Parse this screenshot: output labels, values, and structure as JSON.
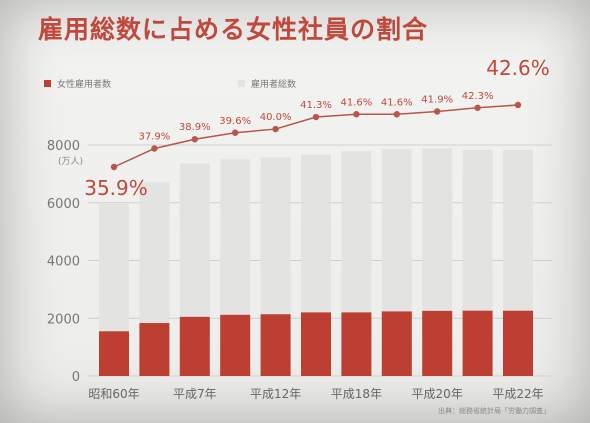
{
  "title": "雇用総数に占める女性社員の割合",
  "legend": {
    "female": "女性雇用者数",
    "total": "雇用者総数"
  },
  "colors": {
    "accent": "#c0483c",
    "bar_female": "#bd3e33",
    "bar_total": "#e3e3e1",
    "line": "#b8564b"
  },
  "source": "出典：総務省統計局「労働力調査」",
  "chart_data": {
    "type": "bar",
    "categories": [
      "昭和60年",
      "",
      "平成7年",
      "",
      "平成12年",
      "",
      "平成18年",
      "",
      "平成20年",
      "",
      "平成22年"
    ],
    "ylabel": "(万人)",
    "ylim": [
      0,
      8000
    ],
    "yticks": [
      0,
      2000,
      4000,
      6000,
      8000
    ],
    "series": [
      {
        "name": "女性雇用者数",
        "values": [
          1548,
          1834,
          2048,
          2118,
          2140,
          2203,
          2203,
          2237,
          2256,
          2262,
          2260
        ]
      },
      {
        "name": "雇用者総数",
        "values": [
          5962,
          6706,
          7363,
          7507,
          7567,
          7659,
          7785,
          7856,
          7880,
          7839,
          7839
        ]
      }
    ],
    "line": {
      "values": [
        35.9,
        37.9,
        38.9,
        39.6,
        40.0,
        41.3,
        41.6,
        41.6,
        41.9,
        42.3,
        42.6
      ],
      "labels": [
        "35.9%",
        "37.9%",
        "38.9%",
        "39.6%",
        "40.0%",
        "41.3%",
        "41.6%",
        "41.6%",
        "41.9%",
        "42.3%",
        "42.6%"
      ]
    },
    "grid": true
  }
}
